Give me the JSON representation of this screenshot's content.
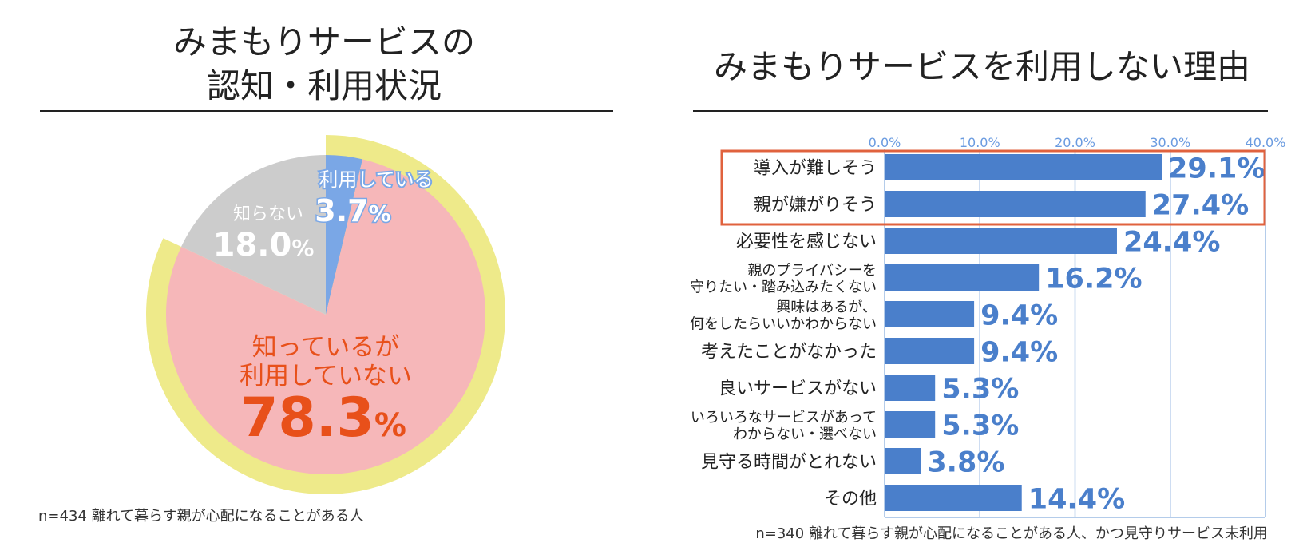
{
  "colors": {
    "pie_used": "#7aa7e6",
    "pie_unaware": "#cccccc",
    "pie_aware_not_using": "#f6b7b9",
    "pie_ring": "#eeea8a",
    "pie_label_red": "#e8501a",
    "bar": "#4a7fcb",
    "bar_label": "#4a7fcb",
    "axis_tick": "#6a9be0",
    "grid": "#9cbbe4",
    "highlight_box": "#e0623e"
  },
  "left_panel": {
    "title_line1": "みまもりサービスの",
    "title_line2": "認知・利用状況",
    "footnote": "n=434 離れて暮らす親が心配になることがある人"
  },
  "right_panel": {
    "title": "みまもりサービスを利用しない理由",
    "footnote": "n=340 離れて暮らす親が心配になることがある人、かつ見守りサービス未利用"
  },
  "chart_data": [
    {
      "type": "pie",
      "title": "みまもりサービスの認知・利用状況",
      "unit": "%",
      "slices": [
        {
          "label": "利用している",
          "value": 3.7,
          "display": "3.7"
        },
        {
          "label": "知っているが利用していない",
          "label_lines": [
            "知っているが",
            "利用していない"
          ],
          "value": 78.3,
          "display": "78.3"
        },
        {
          "label": "知らない",
          "value": 18.0,
          "display": "18.0"
        }
      ],
      "ring_highlight": [
        "利用している",
        "知っているが利用していない"
      ]
    },
    {
      "type": "bar",
      "orientation": "horizontal",
      "title": "みまもりサービスを利用しない理由",
      "unit": "%",
      "xlim": [
        0,
        40
      ],
      "ticks": [
        {
          "value": 0,
          "label": "0.0%"
        },
        {
          "value": 10,
          "label": "10.0%"
        },
        {
          "value": 20,
          "label": "20.0%"
        },
        {
          "value": 30,
          "label": "30.0%"
        },
        {
          "value": 40,
          "label": "40.0%"
        }
      ],
      "grid": true,
      "highlighted_categories": [
        "導入が難しそう",
        "親が嫌がりそう"
      ],
      "categories": [
        {
          "lines": [
            "導入が難しそう"
          ]
        },
        {
          "lines": [
            "親が嫌がりそう"
          ]
        },
        {
          "lines": [
            "必要性を感じない"
          ]
        },
        {
          "lines": [
            "親のプライバシーを",
            "守りたい・踏み込みたくない"
          ]
        },
        {
          "lines": [
            "興味はあるが、",
            "何をしたらいいかわからない"
          ]
        },
        {
          "lines": [
            "考えたことがなかった"
          ]
        },
        {
          "lines": [
            "良いサービスがない"
          ]
        },
        {
          "lines": [
            "いろいろなサービスがあって",
            "わからない・選べない"
          ]
        },
        {
          "lines": [
            "見守る時間がとれない"
          ]
        },
        {
          "lines": [
            "その他"
          ]
        }
      ],
      "values": [
        29.1,
        27.4,
        24.4,
        16.2,
        9.4,
        9.4,
        5.3,
        5.3,
        3.8,
        14.4
      ],
      "value_labels": [
        "29.1%",
        "27.4%",
        "24.4%",
        "16.2%",
        "9.4%",
        "9.4%",
        "5.3%",
        "5.3%",
        "3.8%",
        "14.4%"
      ]
    }
  ]
}
